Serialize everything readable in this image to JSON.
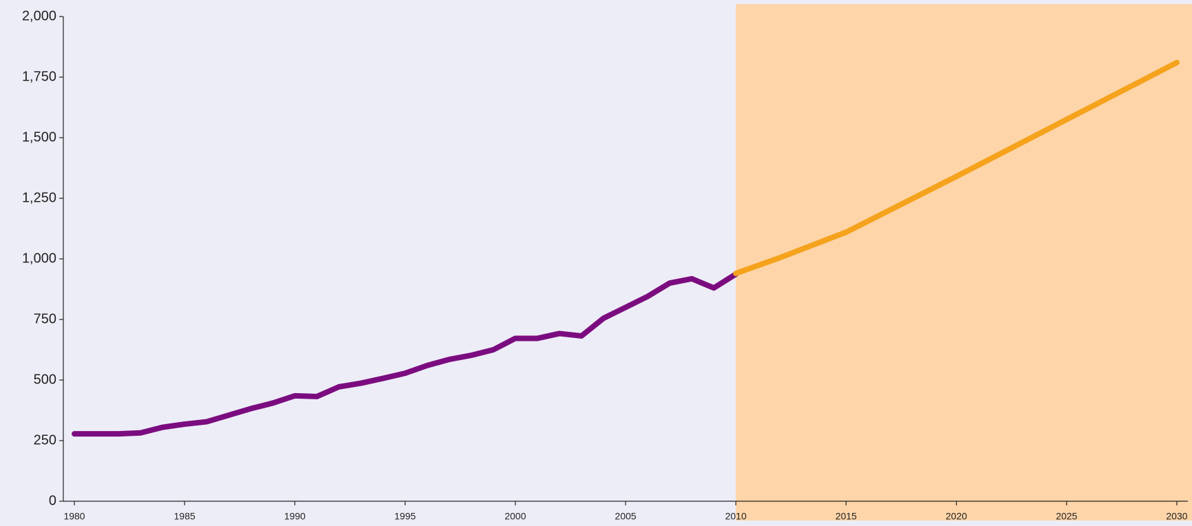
{
  "chart_data": {
    "type": "line",
    "background": "#ededf7",
    "forecast_region": {
      "start": 2010,
      "color": "#fed5a8"
    },
    "xlim": [
      1979.5,
      2030.5
    ],
    "xticks": [
      1980,
      1985,
      1990,
      1995,
      2000,
      2005,
      2010,
      2015,
      2020,
      2025,
      2030
    ],
    "ylim": [
      0,
      2000
    ],
    "yticks": [
      0,
      250,
      500,
      750,
      {
        "value": 1000,
        "label": "1,000"
      },
      {
        "value": 1250,
        "label": "1,250"
      },
      {
        "value": 1500,
        "label": "1,500"
      },
      {
        "value": 1750,
        "label": "1,750"
      },
      {
        "value": 2000,
        "label": "2,000"
      }
    ],
    "series": [
      {
        "color": "#7b0c7f",
        "x": [
          1980,
          1981,
          1982,
          1983,
          1984,
          1985,
          1986,
          1987,
          1988,
          1989,
          1990,
          1991,
          1992,
          1993,
          1994,
          1995,
          1996,
          1997,
          1998,
          1999,
          2000,
          2001,
          2002,
          2003,
          2004,
          2005,
          2006,
          2007,
          2008,
          2009,
          2010
        ],
        "values": [
          278,
          278,
          278,
          282,
          305,
          318,
          328,
          355,
          382,
          405,
          435,
          432,
          472,
          487,
          507,
          528,
          560,
          585,
          602,
          625,
          672,
          672,
          692,
          682,
          755,
          800,
          845,
          900,
          918,
          880,
          937
        ]
      },
      {
        "color": "#f5a21c",
        "x": [
          2010,
          2012,
          2015,
          2020,
          2025,
          2030
        ],
        "values": [
          940,
          1005,
          1110,
          1340,
          1575,
          1810
        ]
      }
    ]
  }
}
